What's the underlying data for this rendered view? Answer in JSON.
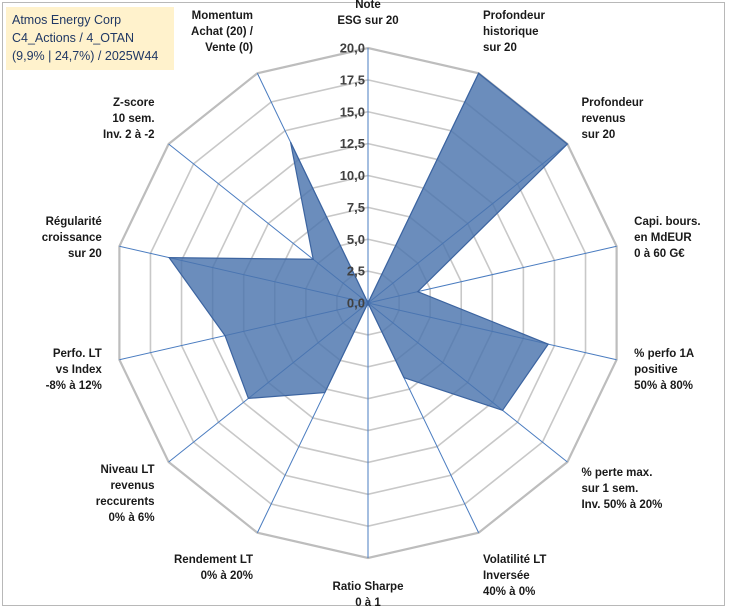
{
  "header": {
    "company": "Atmos Energy Corp",
    "category": "C4_Actions / 4_OTAN",
    "stats": "(9,9% | 24,7%) / 2025W44"
  },
  "chart_data": {
    "type": "radar",
    "title": "Atmos Energy Corp",
    "range": [
      0,
      20
    ],
    "ticks": [
      "0,0",
      "2,5",
      "5,0",
      "7,5",
      "10,0",
      "12,5",
      "15,0",
      "17,5",
      "20,0"
    ],
    "tick_values": [
      0,
      2.5,
      5,
      7.5,
      10,
      12.5,
      15,
      17.5,
      20
    ],
    "axes": [
      {
        "label": [
          "Note",
          "ESG sur 20"
        ],
        "value": 0
      },
      {
        "label": [
          "Profondeur",
          "historique",
          "sur 20"
        ],
        "value": 20
      },
      {
        "label": [
          "Profondeur",
          "revenus",
          "sur 20"
        ],
        "value": 20
      },
      {
        "label": [
          "Capi. bours.",
          "en MdEUR",
          "0 à 60 G€"
        ],
        "value": 4
      },
      {
        "label": [
          "% perfo 1A",
          "positive",
          "50% à 80%"
        ],
        "value": 14.5
      },
      {
        "label": [
          "% perte max.",
          "sur 1 sem.",
          "Inv. 50% à 20%"
        ],
        "value": 13.5
      },
      {
        "label": [
          "Volatilité LT",
          "Inversée",
          "40% à 0%"
        ],
        "value": 6.5
      },
      {
        "label": [
          "Ratio Sharpe",
          "0 à 1"
        ],
        "value": 0
      },
      {
        "label": [
          "Rendement LT",
          "0% à 20%"
        ],
        "value": 7.8
      },
      {
        "label": [
          "Niveau LT",
          "revenus",
          "reccurents",
          "0% à 6%"
        ],
        "value": 12
      },
      {
        "label": [
          "Perfo. LT",
          "vs Index",
          "-8% à 12%"
        ],
        "value": 11.5
      },
      {
        "label": [
          "Régularité",
          "croissance",
          "sur 20"
        ],
        "value": 16
      },
      {
        "label": [
          "Z-score",
          "10 sem.",
          "Inv. 2 à -2"
        ],
        "value": 5.5
      },
      {
        "label": [
          "Momentum",
          "Achat (20) /",
          "Vente (0)"
        ],
        "value": 14
      }
    ],
    "series": [
      {
        "name": "Atmos Energy Corp",
        "color": "#4a74ad"
      }
    ]
  }
}
